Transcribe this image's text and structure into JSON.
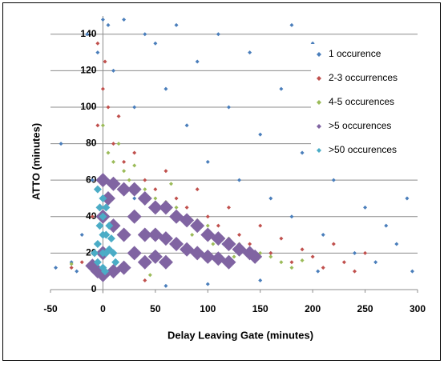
{
  "chart_data": {
    "type": "scatter",
    "x_label": "Delay Leaving Gate (minutes)",
    "y_label": "ATTO (minutes)",
    "xlim": [
      -50,
      300
    ],
    "xticks": [
      -50,
      0,
      50,
      100,
      150,
      200,
      250,
      300
    ],
    "ylim": [
      -2,
      150
    ],
    "yticks": [
      0,
      20,
      40,
      60,
      80,
      100,
      120,
      140
    ],
    "grid": true,
    "legend": "top-right",
    "series": [
      {
        "name": "1 occurence",
        "color": "#4a7ebb",
        "size": 2.5,
        "x": [
          -45,
          -30,
          -20,
          -10,
          -5,
          0,
          5,
          10,
          20,
          30,
          40,
          50,
          60,
          70,
          80,
          90,
          100,
          110,
          120,
          130,
          140,
          150,
          160,
          170,
          180,
          190,
          200,
          210,
          220,
          230,
          240,
          250,
          260,
          270,
          280,
          290,
          295,
          205,
          150,
          100,
          60,
          -40,
          -25,
          275,
          245,
          180,
          115,
          30,
          -15,
          160
        ],
        "values": [
          12,
          15,
          30,
          60,
          130,
          148,
          145,
          120,
          148,
          100,
          140,
          135,
          110,
          145,
          90,
          125,
          70,
          140,
          100,
          60,
          130,
          85,
          50,
          110,
          40,
          75,
          135,
          30,
          60,
          95,
          20,
          45,
          15,
          35,
          25,
          50,
          10,
          10,
          5,
          3,
          2,
          80,
          10,
          80,
          120,
          145,
          25,
          50,
          140,
          20
        ]
      },
      {
        "name": "2-3 occurrences",
        "color": "#c0504d",
        "size": 2.5,
        "x": [
          -10,
          -5,
          0,
          2,
          5,
          10,
          15,
          20,
          30,
          40,
          50,
          60,
          70,
          80,
          90,
          100,
          110,
          120,
          130,
          140,
          150,
          160,
          170,
          180,
          190,
          200,
          210,
          220,
          230,
          240,
          250,
          -20,
          -30,
          40,
          -5
        ],
        "values": [
          40,
          90,
          110,
          125,
          100,
          80,
          95,
          70,
          75,
          60,
          55,
          65,
          50,
          45,
          55,
          40,
          35,
          45,
          30,
          25,
          35,
          20,
          28,
          15,
          22,
          18,
          12,
          25,
          15,
          10,
          20,
          15,
          12,
          5,
          135
        ]
      },
      {
        "name": "4-5 occurences",
        "color": "#9bbb59",
        "size": 2.5,
        "x": [
          0,
          5,
          10,
          15,
          20,
          30,
          40,
          50,
          60,
          70,
          80,
          90,
          100,
          110,
          120,
          130,
          140,
          150,
          160,
          170,
          180,
          190,
          45,
          25,
          65,
          85,
          105,
          125,
          -10,
          -30
        ],
        "values": [
          90,
          75,
          70,
          80,
          65,
          68,
          55,
          50,
          48,
          45,
          40,
          38,
          35,
          30,
          28,
          25,
          22,
          20,
          18,
          15,
          12,
          16,
          8,
          60,
          58,
          30,
          25,
          18,
          12,
          14
        ]
      },
      {
        "name": ">5 occurences",
        "color": "#8064a2",
        "size": 9,
        "x": [
          0,
          0,
          0,
          0,
          10,
          10,
          10,
          20,
          20,
          20,
          30,
          30,
          30,
          40,
          40,
          40,
          50,
          50,
          50,
          60,
          60,
          60,
          70,
          70,
          80,
          80,
          90,
          90,
          100,
          100,
          110,
          110,
          120,
          120,
          130,
          140,
          145,
          -5,
          -10,
          5
        ],
        "values": [
          60,
          40,
          20,
          8,
          58,
          35,
          10,
          55,
          30,
          12,
          55,
          40,
          20,
          50,
          30,
          15,
          45,
          30,
          18,
          45,
          28,
          15,
          40,
          25,
          38,
          22,
          35,
          20,
          30,
          18,
          28,
          17,
          25,
          15,
          22,
          20,
          18,
          10,
          13,
          50
        ]
      },
      {
        "name": ">50 occurences",
        "color": "#4bacc6",
        "size": 5,
        "x": [
          -5,
          -3,
          -3,
          -5,
          -5,
          0,
          0,
          0,
          0,
          0,
          3,
          3,
          3,
          6,
          6,
          8,
          10,
          12,
          -8,
          2
        ],
        "values": [
          55,
          45,
          35,
          25,
          15,
          50,
          40,
          30,
          20,
          12,
          45,
          30,
          20,
          35,
          22,
          28,
          20,
          15,
          20,
          10
        ]
      }
    ]
  }
}
